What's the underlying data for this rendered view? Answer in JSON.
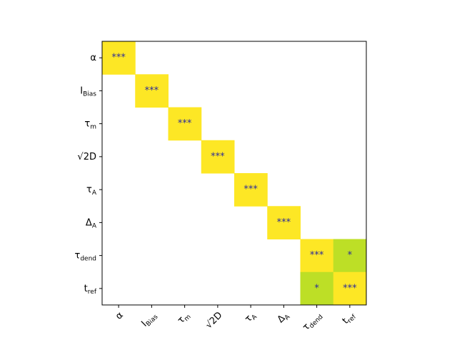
{
  "chart_data": {
    "type": "heatmap",
    "labels": [
      {
        "base": "α"
      },
      {
        "base": "I",
        "sub": "Bias"
      },
      {
        "base": "τ",
        "sub": "m"
      },
      {
        "base": "√2D"
      },
      {
        "base": "τ",
        "sub": "A"
      },
      {
        "base": "Δ",
        "sub": "A"
      },
      {
        "base": "τ",
        "sub": "dend"
      },
      {
        "base": "t",
        "sub": "ref"
      }
    ],
    "values": [
      [
        3,
        null,
        null,
        null,
        null,
        null,
        null,
        null
      ],
      [
        null,
        3,
        null,
        null,
        null,
        null,
        null,
        null
      ],
      [
        null,
        null,
        3,
        null,
        null,
        null,
        null,
        null
      ],
      [
        null,
        null,
        null,
        3,
        null,
        null,
        null,
        null
      ],
      [
        null,
        null,
        null,
        null,
        3,
        null,
        null,
        null
      ],
      [
        null,
        null,
        null,
        null,
        null,
        3,
        null,
        null
      ],
      [
        null,
        null,
        null,
        null,
        null,
        null,
        3,
        1
      ],
      [
        null,
        null,
        null,
        null,
        null,
        null,
        1,
        3
      ]
    ],
    "value_labels": [
      [
        "***",
        null,
        null,
        null,
        null,
        null,
        null,
        null
      ],
      [
        null,
        "***",
        null,
        null,
        null,
        null,
        null,
        null
      ],
      [
        null,
        null,
        "***",
        null,
        null,
        null,
        null,
        null
      ],
      [
        null,
        null,
        null,
        "***",
        null,
        null,
        null,
        null
      ],
      [
        null,
        null,
        null,
        null,
        "***",
        null,
        null,
        null
      ],
      [
        null,
        null,
        null,
        null,
        null,
        "***",
        null,
        null
      ],
      [
        null,
        null,
        null,
        null,
        null,
        null,
        "***",
        "*"
      ],
      [
        null,
        null,
        null,
        null,
        null,
        null,
        "*",
        "***"
      ]
    ],
    "colorscale": [
      {
        "value": 1,
        "color": "#bddf26"
      },
      {
        "value": 3,
        "color": "#fde725"
      }
    ],
    "annotation_color": "#2a2a9a"
  }
}
